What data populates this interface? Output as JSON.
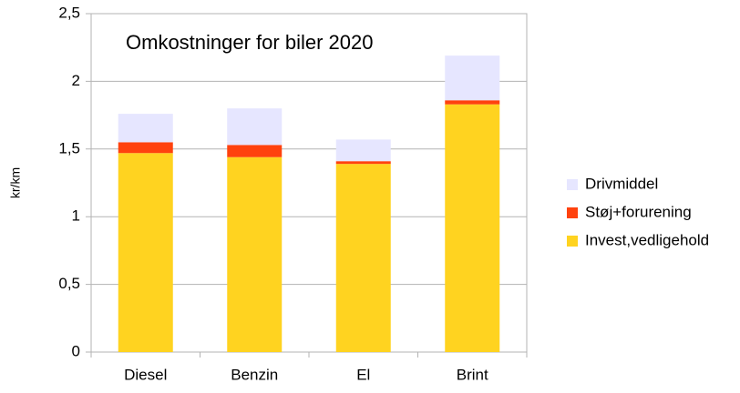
{
  "chart_data": {
    "type": "stacked_bar",
    "title": "Omkostninger for biler 2020",
    "y_label": "kr/km",
    "categories": [
      "Diesel",
      "Benzin",
      "El",
      "Brint"
    ],
    "series": [
      {
        "name": "Invest,vedligehold",
        "color": "#ffd320",
        "values": [
          1.47,
          1.44,
          1.39,
          1.83
        ]
      },
      {
        "name": "Støj+forurening",
        "color": "#ff420e",
        "values": [
          0.08,
          0.09,
          0.02,
          0.03
        ]
      },
      {
        "name": "Drivmiddel",
        "color": "#e6e6ff",
        "values": [
          0.21,
          0.27,
          0.16,
          0.33
        ]
      }
    ],
    "ylim": [
      0,
      2.5
    ],
    "yticks": [
      0,
      {
        "value": 0.5,
        "label": "0,5"
      },
      1,
      {
        "value": 1.5,
        "label": "1,5"
      },
      2,
      {
        "value": 2.5,
        "label": "2,5"
      }
    ],
    "grid": true,
    "legend": "right"
  }
}
